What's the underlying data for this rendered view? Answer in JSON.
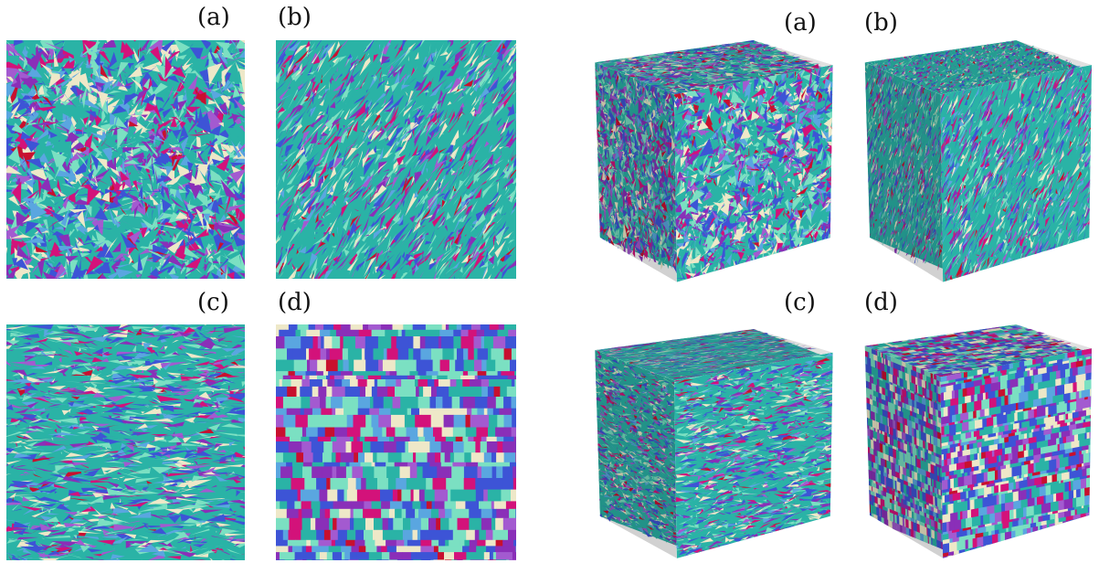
{
  "left_figure": {
    "panels": [
      {
        "label": "(a)",
        "pattern": "isotropic-triangles"
      },
      {
        "label": "(b)",
        "pattern": "diagonal-elongated"
      },
      {
        "label": "(c)",
        "pattern": "horizontal-elongated"
      },
      {
        "label": "(d)",
        "pattern": "grid-blocks"
      }
    ]
  },
  "right_figure": {
    "panels": [
      {
        "label": "(a)",
        "pattern": "isotropic-triangles"
      },
      {
        "label": "(b)",
        "pattern": "diagonal-elongated"
      },
      {
        "label": "(c)",
        "pattern": "horizontal-elongated"
      },
      {
        "label": "(d)",
        "pattern": "grid-blocks"
      }
    ]
  },
  "palette": [
    "#2ab3a6",
    "#7be0c2",
    "#3d54d6",
    "#8a2fb8",
    "#d3127a",
    "#c8102e",
    "#eee8c8",
    "#5aa6e0",
    "#a35ad0"
  ]
}
